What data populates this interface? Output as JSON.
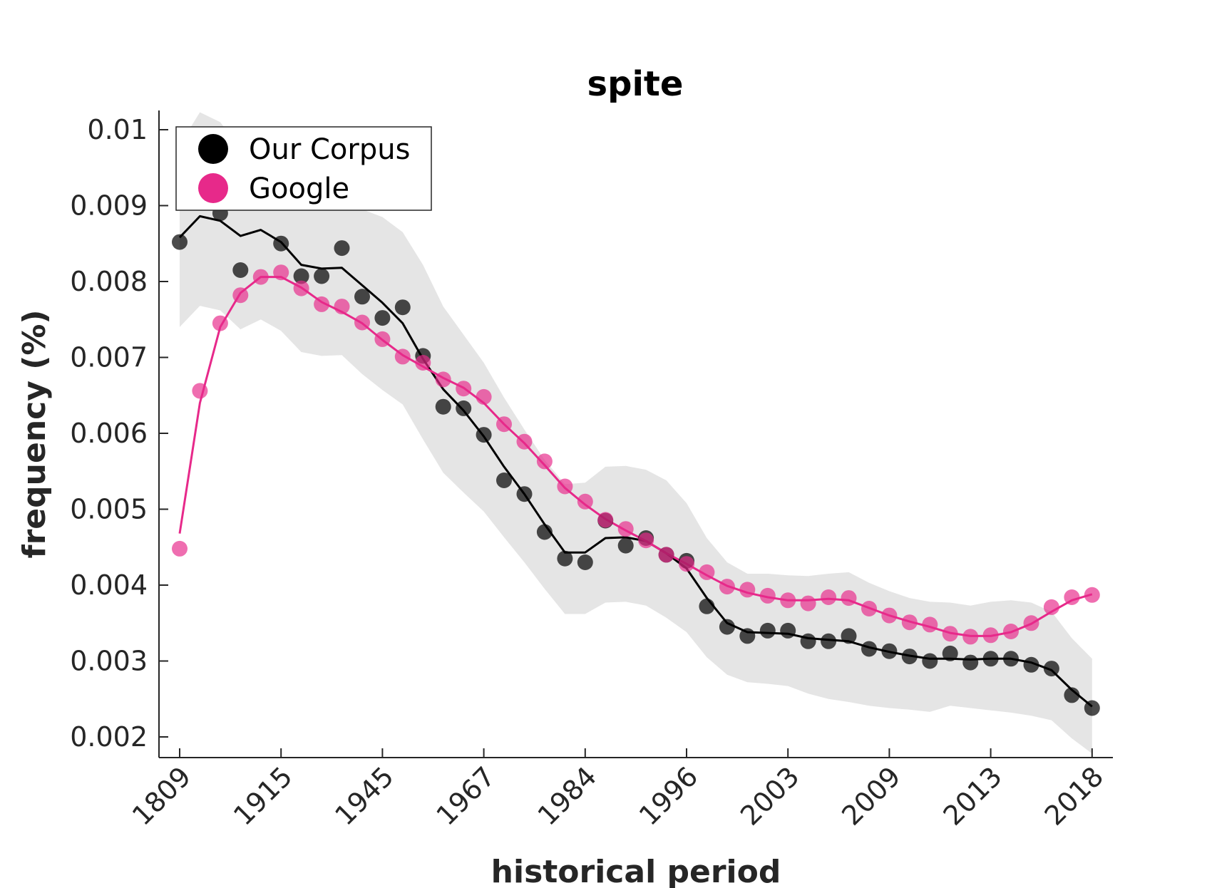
{
  "chart_data": {
    "type": "line",
    "title": "spite",
    "xlabel": "historical period",
    "ylabel": "frequency (%)",
    "ylim": [
      0.00175,
      0.01025
    ],
    "yticks": [
      "0.002",
      "0.003",
      "0.004",
      "0.005",
      "0.006",
      "0.007",
      "0.008",
      "0.009",
      "0.01"
    ],
    "ytick_values": [
      0.002,
      0.003,
      0.004,
      0.005,
      0.006,
      0.007,
      0.008,
      0.009,
      0.01
    ],
    "xticks": [
      "1809",
      "1915",
      "1945",
      "1967",
      "1984",
      "1996",
      "2003",
      "2009",
      "2013",
      "2018"
    ],
    "xtick_index": [
      0,
      5,
      10,
      15,
      20,
      25,
      30,
      35,
      40,
      45
    ],
    "n_periods": 46,
    "legend_position": "top-left",
    "grid": false,
    "series": [
      {
        "name": "Our Corpus",
        "color": "#000000",
        "line_color": "#000000",
        "points": [
          0.00852,
          0.00925,
          0.0089,
          0.00815,
          0.00935,
          0.0085,
          0.00807,
          0.00807,
          0.00844,
          0.0078,
          0.00752,
          0.00766,
          0.00702,
          0.00635,
          0.00633,
          0.00598,
          0.00538,
          0.0052,
          0.0047,
          0.00435,
          0.0043,
          0.00485,
          0.00452,
          0.00462,
          0.0044,
          0.00432,
          0.00372,
          0.00345,
          0.00333,
          0.0034,
          0.0034,
          0.00326,
          0.00326,
          0.00333,
          0.00316,
          0.00313,
          0.00306,
          0.003,
          0.0031,
          0.00298,
          0.00303,
          0.00303,
          0.00295,
          0.0029,
          0.00255,
          0.00238
        ],
        "smooth": [
          0.00858,
          0.00886,
          0.0088,
          0.0086,
          0.00868,
          0.00852,
          0.00822,
          0.00817,
          0.00818,
          0.00795,
          0.00772,
          0.00745,
          0.00698,
          0.00658,
          0.0063,
          0.00596,
          0.00556,
          0.0052,
          0.0048,
          0.00443,
          0.00443,
          0.00462,
          0.00463,
          0.00458,
          0.00442,
          0.00422,
          0.00383,
          0.0035,
          0.00338,
          0.00337,
          0.00336,
          0.0033,
          0.00328,
          0.00326,
          0.00318,
          0.00312,
          0.00307,
          0.00303,
          0.00303,
          0.00302,
          0.00303,
          0.00303,
          0.00298,
          0.00288,
          0.00262,
          0.0024
        ],
        "band_upper": [
          0.0098,
          0.01023,
          0.0101,
          0.00975,
          0.0097,
          0.00955,
          0.0093,
          0.00925,
          0.00925,
          0.00895,
          0.00885,
          0.00865,
          0.00822,
          0.00767,
          0.0073,
          0.00693,
          0.00647,
          0.00605,
          0.00565,
          0.00533,
          0.00535,
          0.00556,
          0.00557,
          0.00552,
          0.00538,
          0.00508,
          0.00462,
          0.0043,
          0.00415,
          0.00415,
          0.00413,
          0.00412,
          0.00415,
          0.00417,
          0.00403,
          0.00392,
          0.00383,
          0.00378,
          0.00377,
          0.00373,
          0.00378,
          0.0038,
          0.00377,
          0.00365,
          0.0033,
          0.00303
        ],
        "band_lower": [
          0.0074,
          0.00768,
          0.00762,
          0.00737,
          0.0075,
          0.00735,
          0.00707,
          0.00702,
          0.00703,
          0.00678,
          0.00657,
          0.00638,
          0.00592,
          0.00548,
          0.00522,
          0.00497,
          0.00463,
          0.0043,
          0.00395,
          0.00362,
          0.00362,
          0.00377,
          0.00378,
          0.00373,
          0.00357,
          0.00338,
          0.00305,
          0.00282,
          0.00272,
          0.0027,
          0.00267,
          0.00257,
          0.0025,
          0.00246,
          0.00241,
          0.00238,
          0.00236,
          0.00233,
          0.00241,
          0.00238,
          0.00235,
          0.00232,
          0.00228,
          0.00222,
          0.00198,
          0.00178
        ]
      },
      {
        "name": "Google",
        "color": "#e7298a",
        "line_color": "#e7298a",
        "points": [
          0.00448,
          0.00656,
          0.00745,
          0.00782,
          0.00806,
          0.00812,
          0.00791,
          0.0077,
          0.00767,
          0.00746,
          0.00724,
          0.00701,
          0.00693,
          0.00671,
          0.00659,
          0.00648,
          0.00612,
          0.00589,
          0.00563,
          0.0053,
          0.0051,
          0.00486,
          0.00474,
          0.00459,
          0.0044,
          0.00428,
          0.00417,
          0.00398,
          0.00394,
          0.00386,
          0.0038,
          0.00376,
          0.00384,
          0.00383,
          0.00369,
          0.0036,
          0.00351,
          0.00348,
          0.00336,
          0.00332,
          0.00334,
          0.00339,
          0.0035,
          0.00371,
          0.00384,
          0.00387
        ],
        "smooth": [
          0.00468,
          0.0064,
          0.0074,
          0.00785,
          0.00806,
          0.00806,
          0.00792,
          0.00773,
          0.0076,
          0.00745,
          0.00723,
          0.00703,
          0.00688,
          0.00673,
          0.0066,
          0.0064,
          0.00612,
          0.00587,
          0.00558,
          0.00528,
          0.00506,
          0.00487,
          0.00472,
          0.00458,
          0.00442,
          0.00428,
          0.00413,
          0.00399,
          0.0039,
          0.00384,
          0.0038,
          0.0038,
          0.00382,
          0.0038,
          0.0037,
          0.0036,
          0.00352,
          0.00345,
          0.00337,
          0.00333,
          0.00333,
          0.00338,
          0.00349,
          0.00365,
          0.0038,
          0.00388
        ]
      }
    ]
  }
}
